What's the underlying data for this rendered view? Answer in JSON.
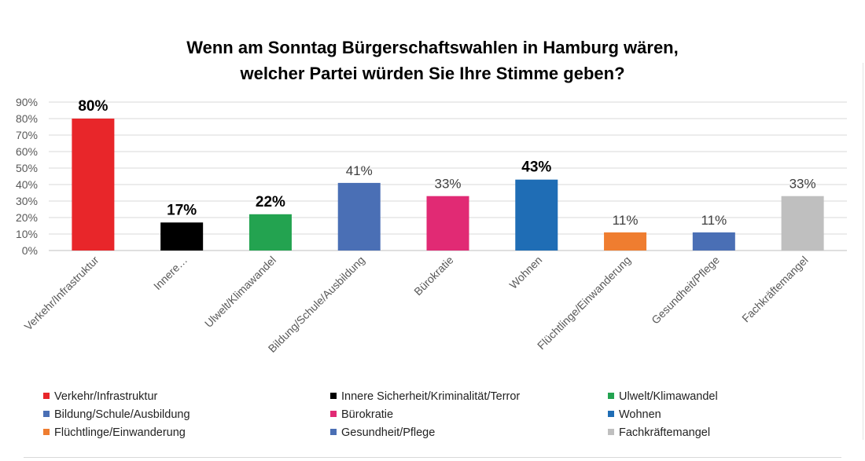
{
  "chart_data": {
    "type": "bar",
    "title_line1": "Wenn am Sonntag Bürgerschaftswahlen in Hamburg wären,",
    "title_line2": "welcher Partei würden Sie Ihre Stimme geben?",
    "categories": [
      "Verkehr/Infrastruktur",
      "Innere…",
      "Ulwelt/Klimawandel",
      "Bildung/Schule/Ausbildung",
      "Bürokratie",
      "Wohnen",
      "Flüchtlinge/Einwanderung",
      "Gesundheit/Pflege",
      "Fachkräftemangel"
    ],
    "values": [
      80,
      17,
      22,
      41,
      33,
      43,
      11,
      11,
      33
    ],
    "value_labels": [
      "80%",
      "17%",
      "22%",
      "41%",
      "33%",
      "43%",
      "11%",
      "11%",
      "33%"
    ],
    "bold_labels": [
      true,
      true,
      true,
      false,
      false,
      true,
      false,
      false,
      false
    ],
    "colors": [
      "#e8262a",
      "#000000",
      "#23a350",
      "#4a6fb5",
      "#e12a74",
      "#1f6db5",
      "#ef7d30",
      "#4a6fb5",
      "#bfbfbf"
    ],
    "yticks": [
      "0%",
      "10%",
      "20%",
      "30%",
      "40%",
      "50%",
      "60%",
      "70%",
      "80%",
      "90%"
    ],
    "ylim": [
      0,
      90
    ],
    "grid": true,
    "legend_position": "bottom",
    "legend": [
      {
        "label": "Verkehr/Infrastruktur",
        "color": "#e8262a"
      },
      {
        "label": "Innere Sicherheit/Kriminalität/Terror",
        "color": "#000000"
      },
      {
        "label": "Ulwelt/Klimawandel",
        "color": "#23a350"
      },
      {
        "label": "Bildung/Schule/Ausbildung",
        "color": "#4a6fb5"
      },
      {
        "label": "Bürokratie",
        "color": "#e12a74"
      },
      {
        "label": "Wohnen",
        "color": "#1f6db5"
      },
      {
        "label": "Flüchtlinge/Einwanderung",
        "color": "#ef7d30"
      },
      {
        "label": "Gesundheit/Pflege",
        "color": "#4a6fb5"
      },
      {
        "label": "Fachkräftemangel",
        "color": "#bfbfbf"
      }
    ]
  }
}
